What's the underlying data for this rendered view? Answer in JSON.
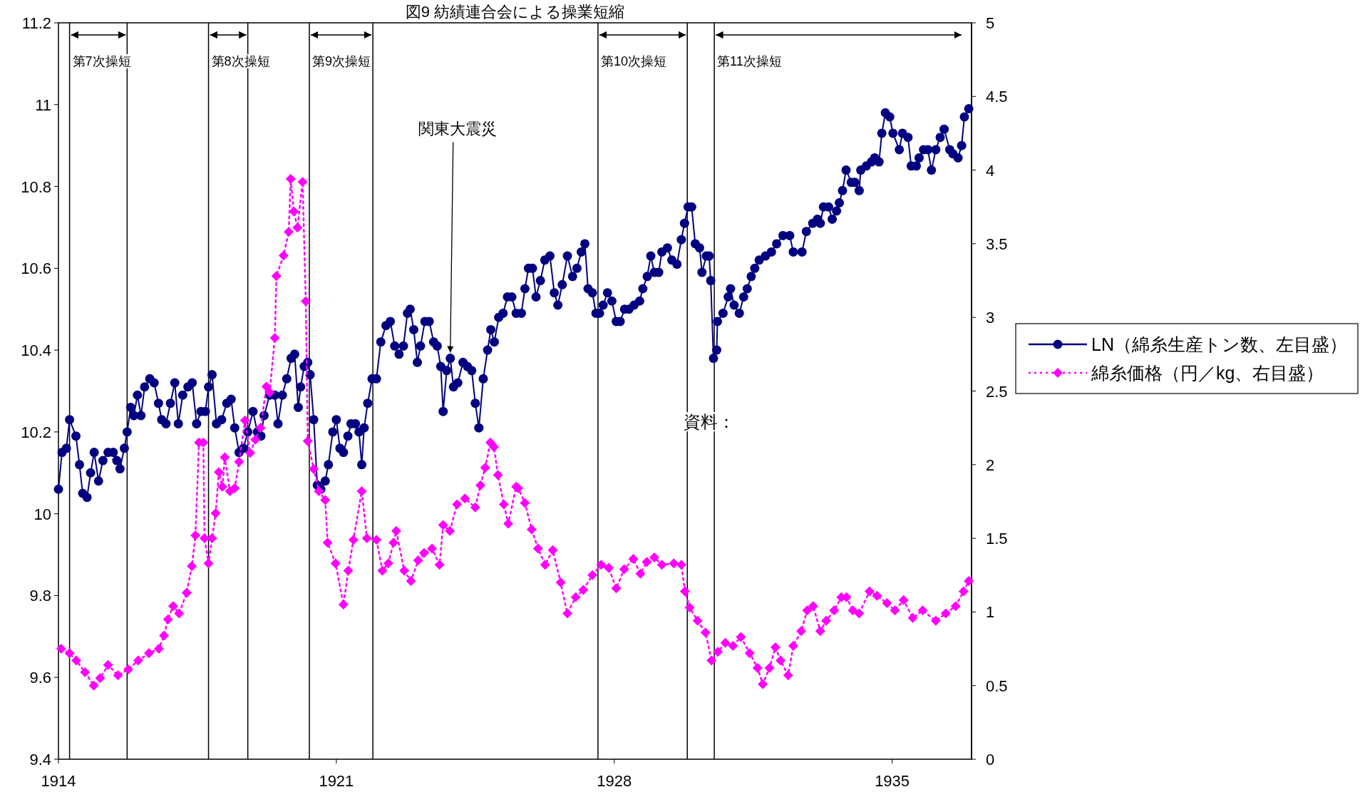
{
  "chart_data": {
    "type": "line",
    "title": "図9 紡績連合会による操業短縮",
    "xlim": [
      1914,
      1937
    ],
    "xticks": [
      1914,
      1921,
      1928,
      1935
    ],
    "ylim": [
      9.4,
      11.2
    ],
    "yticks": [
      9.4,
      9.6,
      9.8,
      10,
      10.2,
      10.4,
      10.6,
      10.8,
      11,
      11.2
    ],
    "y2lim": [
      0,
      5
    ],
    "y2ticks": [
      0,
      0.5,
      1,
      1.5,
      2,
      2.5,
      3,
      3.5,
      4,
      4.5,
      5
    ],
    "legend": "right",
    "ref_lines": [
      {
        "axis": "x",
        "value": 1914.28,
        "label": "第7次操短"
      },
      {
        "axis": "x",
        "value": 1915.73,
        "label": null
      },
      {
        "axis": "x",
        "value": 1917.78,
        "label": "第8次操短"
      },
      {
        "axis": "x",
        "value": 1918.77,
        "label": null
      },
      {
        "axis": "x",
        "value": 1920.32,
        "label": "第9次操短"
      },
      {
        "axis": "x",
        "value": 1921.92,
        "label": null
      },
      {
        "axis": "x",
        "value": 1927.59,
        "label": "第10次操短"
      },
      {
        "axis": "x",
        "value": 1929.84,
        "label": null
      },
      {
        "axis": "x",
        "value": 1930.52,
        "label": "第11次操短"
      },
      {
        "axis": "x",
        "value": 1937,
        "label": null
      }
    ],
    "annotations": [
      {
        "text": "関東大震災",
        "x": 1923.87,
        "y": 10.38
      },
      "資料："
    ],
    "series": [
      {
        "name": "LN（綿糸生産トン数、左目盛）",
        "color": "#000080",
        "marker": "circle",
        "line_style": "solid",
        "x": [
          1914.0,
          1914.09,
          1914.2,
          1914.28,
          1914.44,
          1914.53,
          1914.61,
          1914.72,
          1914.81,
          1914.9,
          1915.01,
          1915.12,
          1915.25,
          1915.38,
          1915.47,
          1915.55,
          1915.66,
          1915.73,
          1915.82,
          1915.9,
          1915.99,
          1916.08,
          1916.17,
          1916.3,
          1916.41,
          1916.52,
          1916.6,
          1916.71,
          1916.82,
          1916.93,
          1917.02,
          1917.13,
          1917.26,
          1917.37,
          1917.48,
          1917.59,
          1917.7,
          1917.78,
          1917.87,
          1917.98,
          1918.11,
          1918.24,
          1918.35,
          1918.44,
          1918.55,
          1918.66,
          1918.77,
          1918.9,
          1919.01,
          1919.1,
          1919.18,
          1919.32,
          1919.45,
          1919.53,
          1919.64,
          1919.75,
          1919.86,
          1919.95,
          1920.04,
          1920.1,
          1920.19,
          1920.28,
          1920.34,
          1920.43,
          1920.52,
          1920.61,
          1920.72,
          1920.8,
          1920.91,
          1921.0,
          1921.09,
          1921.18,
          1921.29,
          1921.37,
          1921.48,
          1921.57,
          1921.64,
          1921.7,
          1921.79,
          1921.9,
          1922.01,
          1922.12,
          1922.25,
          1922.36,
          1922.47,
          1922.58,
          1922.69,
          1922.79,
          1922.86,
          1922.95,
          1923.04,
          1923.12,
          1923.23,
          1923.34,
          1923.45,
          1923.54,
          1923.63,
          1923.69,
          1923.78,
          1923.87,
          1923.95,
          1924.06,
          1924.19,
          1924.3,
          1924.41,
          1924.5,
          1924.59,
          1924.7,
          1924.81,
          1924.89,
          1924.98,
          1925.09,
          1925.2,
          1925.31,
          1925.42,
          1925.53,
          1925.66,
          1925.75,
          1925.84,
          1925.94,
          1926.03,
          1926.14,
          1926.25,
          1926.38,
          1926.49,
          1926.58,
          1926.69,
          1926.82,
          1926.95,
          1927.06,
          1927.17,
          1927.26,
          1927.34,
          1927.45,
          1927.54,
          1927.63,
          1927.72,
          1927.83,
          1927.94,
          1928.05,
          1928.15,
          1928.26,
          1928.37,
          1928.5,
          1928.64,
          1928.72,
          1928.83,
          1928.92,
          1929.01,
          1929.12,
          1929.2,
          1929.34,
          1929.45,
          1929.58,
          1929.69,
          1929.77,
          1929.86,
          1929.95,
          1930.04,
          1930.15,
          1930.21,
          1930.32,
          1930.39,
          1930.43,
          1930.5,
          1930.58,
          1930.6,
          1930.74,
          1930.87,
          1930.93,
          1931.02,
          1931.15,
          1931.26,
          1931.35,
          1931.45,
          1931.54,
          1931.65,
          1931.81,
          1931.96,
          1932.09,
          1932.25,
          1932.42,
          1932.51,
          1932.73,
          1932.84,
          1933.0,
          1933.12,
          1933.19,
          1933.27,
          1933.4,
          1933.49,
          1933.6,
          1933.67,
          1933.75,
          1933.84,
          1933.97,
          1934.06,
          1934.17,
          1934.21,
          1934.35,
          1934.48,
          1934.56,
          1934.67,
          1934.74,
          1934.83,
          1934.94,
          1935.02,
          1935.18,
          1935.26,
          1935.4,
          1935.48,
          1935.61,
          1935.68,
          1935.79,
          1935.9,
          1935.99,
          1936.1,
          1936.21,
          1936.31,
          1936.45,
          1936.53,
          1936.66,
          1936.75,
          1936.82,
          1936.93
        ],
        "values": [
          10.06,
          10.15,
          10.16,
          10.23,
          10.19,
          10.12,
          10.05,
          10.04,
          10.1,
          10.15,
          10.08,
          10.13,
          10.15,
          10.15,
          10.13,
          10.11,
          10.16,
          10.2,
          10.26,
          10.24,
          10.29,
          10.24,
          10.31,
          10.33,
          10.32,
          10.27,
          10.23,
          10.22,
          10.27,
          10.32,
          10.22,
          10.29,
          10.31,
          10.32,
          10.22,
          10.25,
          10.25,
          10.31,
          10.34,
          10.22,
          10.23,
          10.27,
          10.28,
          10.21,
          10.15,
          10.16,
          10.2,
          10.25,
          10.2,
          10.19,
          10.24,
          10.29,
          10.29,
          10.22,
          10.29,
          10.33,
          10.38,
          10.39,
          10.26,
          10.31,
          10.36,
          10.37,
          10.34,
          10.23,
          10.07,
          10.06,
          10.08,
          10.12,
          10.2,
          10.23,
          10.16,
          10.15,
          10.19,
          10.22,
          10.22,
          10.2,
          10.12,
          10.21,
          10.27,
          10.33,
          10.33,
          10.42,
          10.46,
          10.47,
          10.41,
          10.39,
          10.41,
          10.49,
          10.5,
          10.45,
          10.37,
          10.41,
          10.47,
          10.47,
          10.42,
          10.41,
          10.36,
          10.25,
          10.35,
          10.38,
          10.31,
          10.32,
          10.37,
          10.36,
          10.35,
          10.27,
          10.21,
          10.33,
          10.4,
          10.45,
          10.42,
          10.48,
          10.49,
          10.53,
          10.53,
          10.49,
          10.49,
          10.55,
          10.6,
          10.6,
          10.53,
          10.57,
          10.62,
          10.63,
          10.54,
          10.51,
          10.56,
          10.63,
          10.58,
          10.6,
          10.64,
          10.66,
          10.55,
          10.54,
          10.49,
          10.49,
          10.51,
          10.54,
          10.52,
          10.47,
          10.47,
          10.5,
          10.5,
          10.51,
          10.52,
          10.55,
          10.58,
          10.63,
          10.59,
          10.59,
          10.64,
          10.65,
          10.62,
          10.61,
          10.67,
          10.71,
          10.75,
          10.75,
          10.66,
          10.65,
          10.59,
          10.63,
          10.63,
          10.57,
          10.38,
          10.4,
          10.47,
          10.49,
          10.53,
          10.55,
          10.51,
          10.49,
          10.53,
          10.55,
          10.58,
          10.6,
          10.62,
          10.63,
          10.64,
          10.66,
          10.68,
          10.68,
          10.64,
          10.64,
          10.69,
          10.71,
          10.72,
          10.71,
          10.75,
          10.75,
          10.72,
          10.74,
          10.76,
          10.79,
          10.84,
          10.81,
          10.81,
          10.79,
          10.84,
          10.85,
          10.86,
          10.87,
          10.86,
          10.93,
          10.98,
          10.97,
          10.93,
          10.89,
          10.93,
          10.92,
          10.85,
          10.85,
          10.87,
          10.89,
          10.89,
          10.84,
          10.89,
          10.92,
          10.94,
          10.89,
          10.88,
          10.87,
          10.9,
          10.97,
          10.99
        ]
      },
      {
        "name": "綿糸価格（円／kg、右目盛）",
        "color": "#ff00ff",
        "marker": "diamond",
        "line_style": "dotted",
        "axis": "y2",
        "x": [
          1914.07,
          1914.28,
          1914.45,
          1914.67,
          1914.89,
          1915.05,
          1915.25,
          1915.5,
          1915.76,
          1916.01,
          1916.28,
          1916.53,
          1916.66,
          1916.76,
          1916.89,
          1917.04,
          1917.23,
          1917.36,
          1917.45,
          1917.54,
          1917.65,
          1917.68,
          1917.78,
          1917.87,
          1917.96,
          1918.04,
          1918.13,
          1918.19,
          1918.32,
          1918.44,
          1918.55,
          1918.7,
          1918.83,
          1918.96,
          1919.09,
          1919.24,
          1919.32,
          1919.45,
          1919.49,
          1919.67,
          1919.8,
          1919.85,
          1919.93,
          1920.02,
          1920.15,
          1920.23,
          1920.28,
          1920.43,
          1920.56,
          1920.72,
          1920.78,
          1920.98,
          1921.18,
          1921.3,
          1921.43,
          1921.64,
          1921.77,
          1922.01,
          1922.16,
          1922.31,
          1922.44,
          1922.51,
          1922.71,
          1922.88,
          1923.06,
          1923.21,
          1923.41,
          1923.6,
          1923.69,
          1923.86,
          1924.04,
          1924.24,
          1924.5,
          1924.63,
          1924.75,
          1924.88,
          1924.97,
          1925.07,
          1925.22,
          1925.33,
          1925.53,
          1925.58,
          1925.75,
          1925.92,
          1926.08,
          1926.26,
          1926.45,
          1926.65,
          1926.82,
          1927.03,
          1927.22,
          1927.45,
          1927.67,
          1927.86,
          1928.05,
          1928.25,
          1928.48,
          1928.66,
          1928.82,
          1929.01,
          1929.2,
          1929.5,
          1929.69,
          1929.78,
          1929.9,
          1930.1,
          1930.3,
          1930.45,
          1930.61,
          1930.8,
          1930.99,
          1931.19,
          1931.41,
          1931.61,
          1931.74,
          1931.91,
          1932.06,
          1932.19,
          1932.38,
          1932.51,
          1932.71,
          1932.86,
          1933.01,
          1933.19,
          1933.34,
          1933.54,
          1933.72,
          1933.85,
          1934.01,
          1934.17,
          1934.43,
          1934.62,
          1934.87,
          1935.07,
          1935.29,
          1935.52,
          1935.77,
          1936.1,
          1936.35,
          1936.6,
          1936.8,
          1936.93
        ],
        "values": [
          0.75,
          0.72,
          0.67,
          0.59,
          0.5,
          0.55,
          0.64,
          0.57,
          0.61,
          0.67,
          0.72,
          0.75,
          0.84,
          0.95,
          1.04,
          0.99,
          1.13,
          1.31,
          1.52,
          2.15,
          2.15,
          1.5,
          1.33,
          1.5,
          1.67,
          1.95,
          1.85,
          2.05,
          1.82,
          1.84,
          2.02,
          2.3,
          2.08,
          2.17,
          2.25,
          2.53,
          2.49,
          2.86,
          3.28,
          3.42,
          3.58,
          3.94,
          3.72,
          3.61,
          3.92,
          3.11,
          2.16,
          1.97,
          1.82,
          1.76,
          1.47,
          1.33,
          1.05,
          1.28,
          1.49,
          1.82,
          1.5,
          1.49,
          1.28,
          1.33,
          1.47,
          1.55,
          1.28,
          1.21,
          1.35,
          1.4,
          1.43,
          1.32,
          1.59,
          1.55,
          1.73,
          1.77,
          1.71,
          1.86,
          1.98,
          2.15,
          2.12,
          1.93,
          1.73,
          1.6,
          1.85,
          1.84,
          1.74,
          1.56,
          1.43,
          1.32,
          1.42,
          1.2,
          0.99,
          1.1,
          1.15,
          1.25,
          1.32,
          1.3,
          1.16,
          1.29,
          1.36,
          1.26,
          1.34,
          1.37,
          1.32,
          1.33,
          1.32,
          1.14,
          1.03,
          0.94,
          0.86,
          0.67,
          0.73,
          0.79,
          0.77,
          0.83,
          0.72,
          0.62,
          0.51,
          0.62,
          0.76,
          0.67,
          0.57,
          0.77,
          0.87,
          1.01,
          1.04,
          0.87,
          0.94,
          1.01,
          1.1,
          1.1,
          1.01,
          0.99,
          1.14,
          1.11,
          1.06,
          1.01,
          1.08,
          0.96,
          1.01,
          0.94,
          0.99,
          1.04,
          1.14,
          1.21
        ]
      }
    ]
  }
}
